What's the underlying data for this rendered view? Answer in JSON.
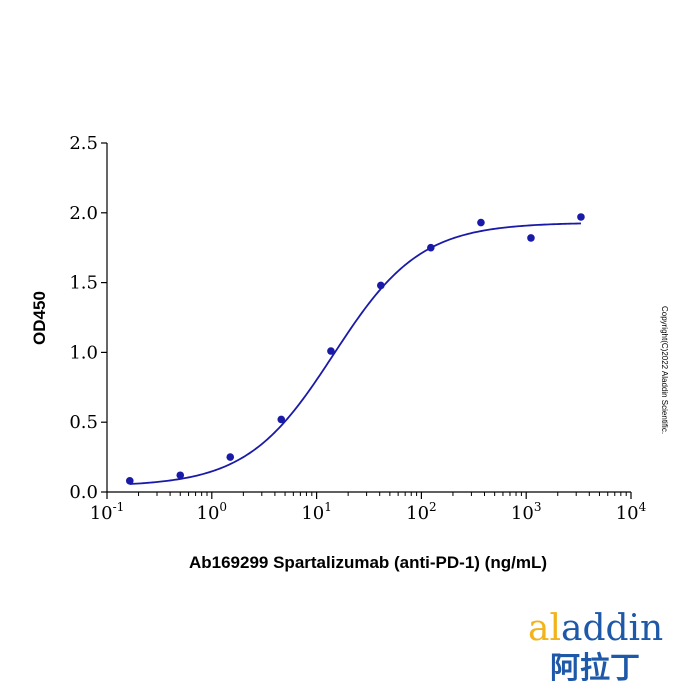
{
  "chart_data": {
    "type": "scatter",
    "title": "",
    "xlabel": "Ab169299 Spartalizumab (anti-PD-1) (ng/mL)",
    "ylabel": "OD450",
    "x_scale": "log",
    "xlim": [
      0.1,
      10000
    ],
    "ylim": [
      0,
      2.5
    ],
    "x_ticks": [
      {
        "base": "10",
        "exp": "-1"
      },
      {
        "base": "10",
        "exp": "0"
      },
      {
        "base": "10",
        "exp": "1"
      },
      {
        "base": "10",
        "exp": "2"
      },
      {
        "base": "10",
        "exp": "3"
      },
      {
        "base": "10",
        "exp": "4"
      }
    ],
    "y_ticks": [
      "0.0",
      "0.5",
      "1.0",
      "1.5",
      "2.0",
      "2.5"
    ],
    "grid": false,
    "point_color": "#1a1aa8",
    "curve_color": "#1a1aa8",
    "series": [
      {
        "x": [
          0.165,
          0.5,
          1.5,
          4.6,
          13.7,
          41,
          123,
          370,
          1110,
          3330
        ],
        "y": [
          0.08,
          0.12,
          0.25,
          0.52,
          1.01,
          1.48,
          1.75,
          1.93,
          1.82,
          1.97
        ]
      }
    ],
    "fit": {
      "model": "4PL",
      "bottom": 0.04,
      "top": 1.93,
      "ec50": 14.5,
      "hill": 1.05,
      "x_range": [
        0.165,
        3330
      ]
    }
  },
  "copyright": "Copyright(C)2022 Aladdin Scientific.",
  "logo": {
    "text": "aladdin",
    "cn": "阿拉丁",
    "color": "#1d59a8",
    "accent": "#f2b31b"
  }
}
